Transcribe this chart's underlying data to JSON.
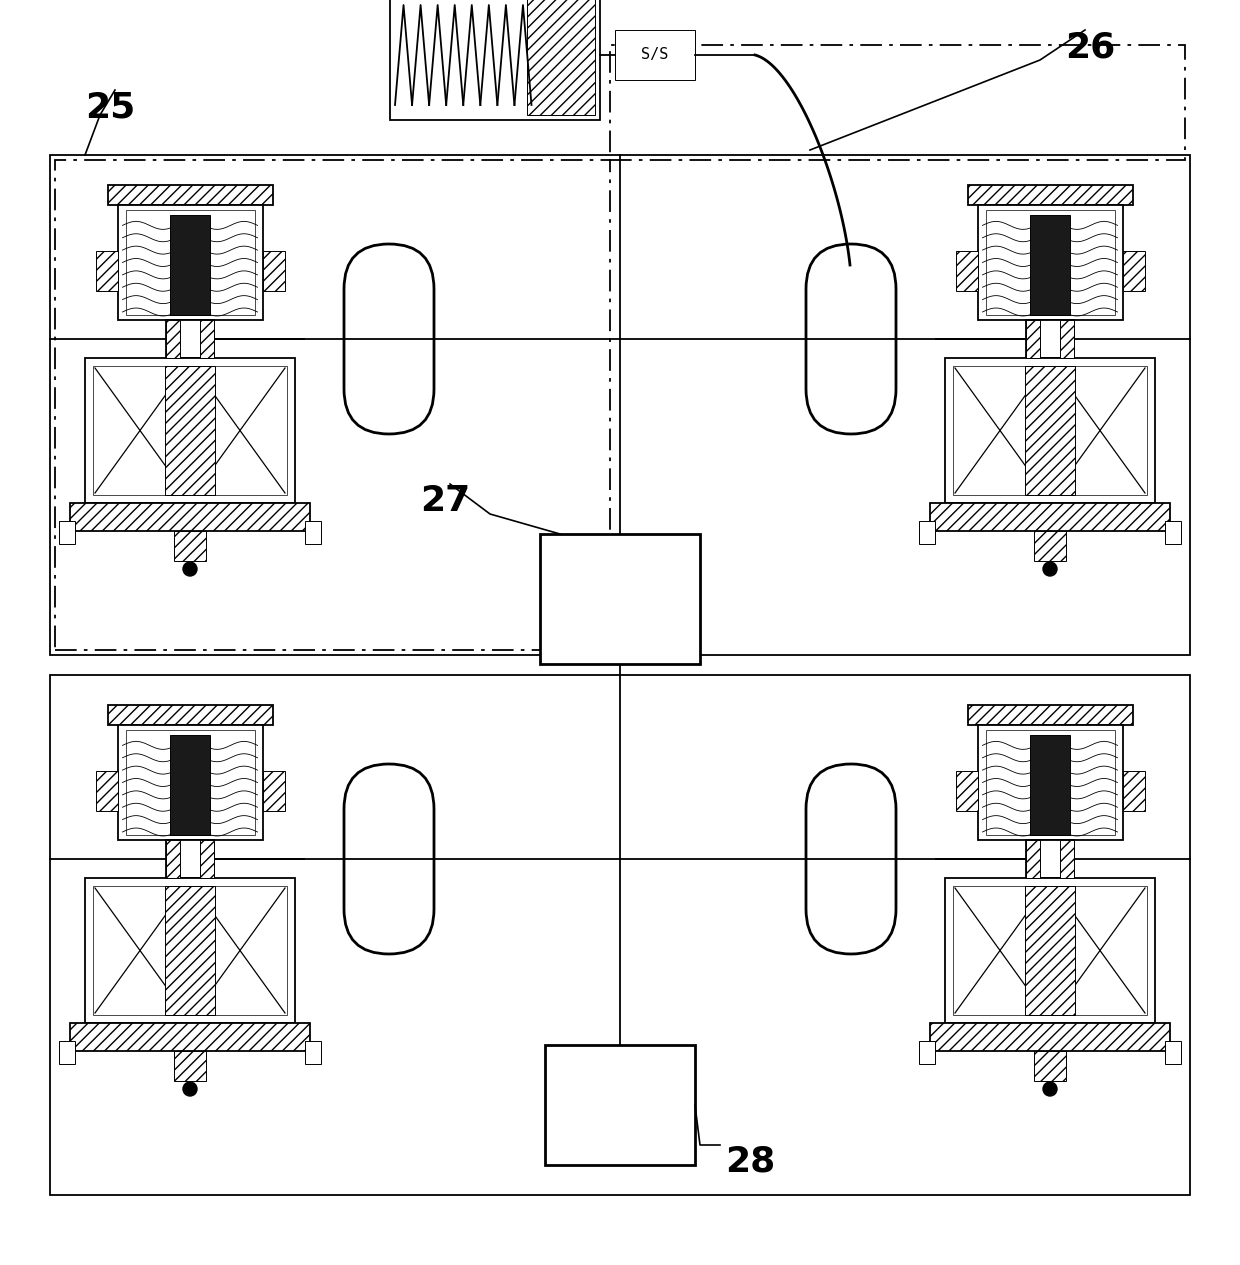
{
  "bg_color": "#ffffff",
  "line_color": "#000000",
  "label_25": "25",
  "label_26": "26",
  "label_27": "27",
  "label_28": "28",
  "sis_label": "S/S",
  "figsize": [
    12.4,
    12.65
  ],
  "dpi": 100,
  "lw_thin": 0.7,
  "lw_med": 1.3,
  "lw_thick": 2.0,
  "lw_ultra": 2.8
}
